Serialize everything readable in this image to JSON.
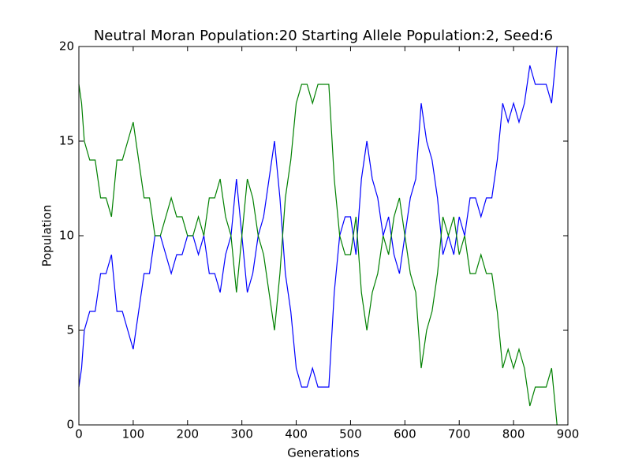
{
  "chart_data": {
    "type": "line",
    "title": "Neutral Moran Population:20 Starting Allele Population:2, Seed:6",
    "xlabel": "Generations",
    "ylabel": "Population",
    "x": [
      0,
      5,
      10,
      20,
      30,
      40,
      50,
      60,
      70,
      80,
      90,
      100,
      110,
      120,
      130,
      140,
      150,
      160,
      170,
      180,
      190,
      200,
      210,
      220,
      230,
      240,
      250,
      260,
      270,
      280,
      290,
      300,
      310,
      320,
      330,
      340,
      350,
      360,
      370,
      380,
      390,
      400,
      410,
      420,
      430,
      440,
      450,
      460,
      470,
      480,
      490,
      500,
      510,
      520,
      530,
      540,
      550,
      560,
      570,
      580,
      590,
      600,
      610,
      620,
      630,
      640,
      650,
      660,
      670,
      680,
      690,
      700,
      710,
      720,
      730,
      740,
      750,
      760,
      770,
      780,
      790,
      800,
      810,
      820,
      830,
      840,
      850,
      860,
      870,
      880
    ],
    "series": [
      {
        "color": "#0000ff",
        "values": [
          2,
          3,
          5,
          6,
          6,
          8,
          8,
          9,
          6,
          6,
          5,
          4,
          6,
          8,
          8,
          10,
          10,
          9,
          8,
          9,
          9,
          10,
          10,
          9,
          10,
          8,
          8,
          7,
          9,
          10,
          13,
          10,
          7,
          8,
          10,
          11,
          13,
          15,
          12,
          8,
          6,
          3,
          2,
          2,
          3,
          2,
          2,
          2,
          7,
          10,
          11,
          11,
          9,
          13,
          15,
          13,
          12,
          10,
          11,
          9,
          8,
          10,
          12,
          13,
          17,
          15,
          14,
          12,
          9,
          10,
          9,
          11,
          10,
          12,
          12,
          11,
          12,
          12,
          14,
          17,
          16,
          17,
          16,
          17,
          19,
          18,
          18,
          18,
          17,
          20
        ]
      },
      {
        "color": "#008000",
        "values": [
          18,
          17,
          15,
          14,
          14,
          12,
          12,
          11,
          14,
          14,
          15,
          16,
          14,
          12,
          12,
          10,
          10,
          11,
          12,
          11,
          11,
          10,
          10,
          11,
          10,
          12,
          12,
          13,
          11,
          10,
          7,
          10,
          13,
          12,
          10,
          9,
          7,
          5,
          8,
          12,
          14,
          17,
          18,
          18,
          17,
          18,
          18,
          18,
          13,
          10,
          9,
          9,
          11,
          7,
          5,
          7,
          8,
          10,
          9,
          11,
          12,
          10,
          8,
          7,
          3,
          5,
          6,
          8,
          11,
          10,
          11,
          9,
          10,
          8,
          8,
          9,
          8,
          8,
          6,
          3,
          4,
          3,
          4,
          3,
          1,
          2,
          2,
          2,
          3,
          0
        ]
      }
    ],
    "xlim": [
      0,
      900
    ],
    "ylim": [
      0,
      20
    ],
    "xticks": [
      0,
      100,
      200,
      300,
      400,
      500,
      600,
      700,
      800,
      900
    ],
    "yticks": [
      0,
      5,
      10,
      15,
      20
    ]
  }
}
